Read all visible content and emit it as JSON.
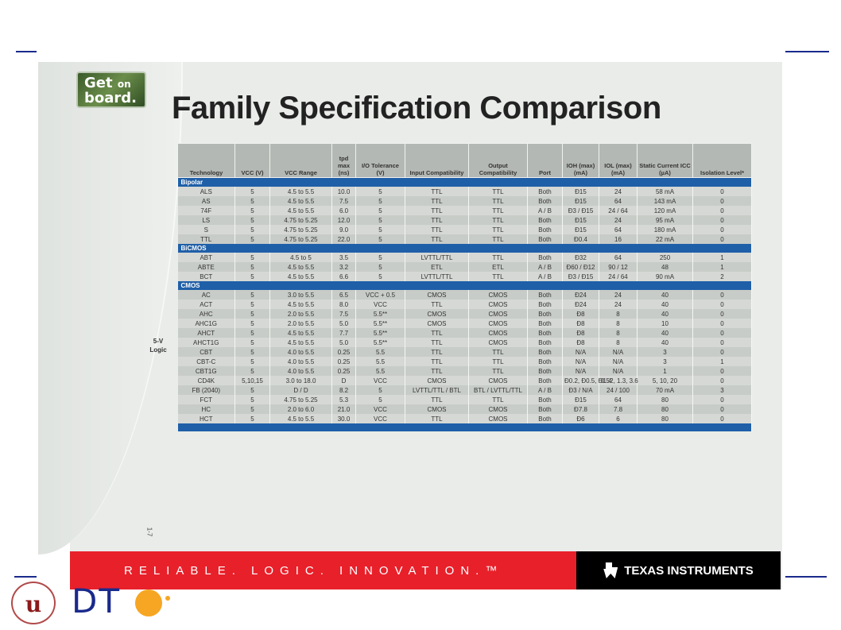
{
  "title": "Family Specification Comparison",
  "logo_badge": {
    "line1": "Get",
    "small": "on",
    "line2": "board."
  },
  "side_label": "5-V Logic",
  "page_number": "1-7",
  "columns": [
    "Technology",
    "VCC (V)",
    "VCC Range",
    "tpd max (ns)",
    "I/O Tolerance (V)",
    "Input Compatibility",
    "Output Compatibility",
    "Port",
    "IOH (max) (mA)",
    "IOL (max) (mA)",
    "Static Current ICC (µA)",
    "Isolation Level*"
  ],
  "sections": [
    {
      "name": "Bipolar",
      "rows": [
        [
          "ALS",
          "5",
          "4.5 to 5.5",
          "10.0",
          "5",
          "TTL",
          "TTL",
          "Both",
          "Ð15",
          "24",
          "58 mA",
          "0"
        ],
        [
          "AS",
          "5",
          "4.5 to 5.5",
          "7.5",
          "5",
          "TTL",
          "TTL",
          "Both",
          "Ð15",
          "64",
          "143 mA",
          "0"
        ],
        [
          "74F",
          "5",
          "4.5 to 5.5",
          "6.0",
          "5",
          "TTL",
          "TTL",
          "A / B",
          "Ð3 / Ð15",
          "24 / 64",
          "120 mA",
          "0"
        ],
        [
          "LS",
          "5",
          "4.75 to 5.25",
          "12.0",
          "5",
          "TTL",
          "TTL",
          "Both",
          "Ð15",
          "24",
          "95 mA",
          "0"
        ],
        [
          "S",
          "5",
          "4.75 to 5.25",
          "9.0",
          "5",
          "TTL",
          "TTL",
          "Both",
          "Ð15",
          "64",
          "180 mA",
          "0"
        ],
        [
          "TTL",
          "5",
          "4.75 to 5.25",
          "22.0",
          "5",
          "TTL",
          "TTL",
          "Both",
          "Ð0.4",
          "16",
          "22 mA",
          "0"
        ]
      ]
    },
    {
      "name": "BiCMOS",
      "rows": [
        [
          "ABT",
          "5",
          "4.5 to 5",
          "3.5",
          "5",
          "LVTTL/TTL",
          "TTL",
          "Both",
          "Ð32",
          "64",
          "250",
          "1"
        ],
        [
          "ABTE",
          "5",
          "4.5 to 5.5",
          "3.2",
          "5",
          "ETL",
          "ETL",
          "A / B",
          "Ð60 / Ð12",
          "90 / 12",
          "48",
          "1"
        ],
        [
          "BCT",
          "5",
          "4.5 to 5.5",
          "6.6",
          "5",
          "LVTTL/TTL",
          "TTL",
          "A / B",
          "Ð3 / Ð15",
          "24 / 64",
          "90 mA",
          "2"
        ]
      ]
    },
    {
      "name": "CMOS",
      "rows": [
        [
          "AC",
          "5",
          "3.0 to 5.5",
          "6.5",
          "VCC + 0.5",
          "CMOS",
          "CMOS",
          "Both",
          "Ð24",
          "24",
          "40",
          "0"
        ],
        [
          "ACT",
          "5",
          "4.5 to 5.5",
          "8.0",
          "VCC",
          "TTL",
          "CMOS",
          "Both",
          "Ð24",
          "24",
          "40",
          "0"
        ],
        [
          "AHC",
          "5",
          "2.0 to 5.5",
          "7.5",
          "5.5**",
          "CMOS",
          "CMOS",
          "Both",
          "Ð8",
          "8",
          "40",
          "0"
        ],
        [
          "AHC1G",
          "5",
          "2.0 to 5.5",
          "5.0",
          "5.5**",
          "CMOS",
          "CMOS",
          "Both",
          "Ð8",
          "8",
          "10",
          "0"
        ],
        [
          "AHCT",
          "5",
          "4.5 to 5.5",
          "7.7",
          "5.5**",
          "TTL",
          "CMOS",
          "Both",
          "Ð8",
          "8",
          "40",
          "0"
        ],
        [
          "AHCT1G",
          "5",
          "4.5 to 5.5",
          "5.0",
          "5.5**",
          "TTL",
          "CMOS",
          "Both",
          "Ð8",
          "8",
          "40",
          "0"
        ],
        [
          "CBT",
          "5",
          "4.0 to 5.5",
          "0.25",
          "5.5",
          "TTL",
          "TTL",
          "Both",
          "N/A",
          "N/A",
          "3",
          "0"
        ],
        [
          "CBT-C",
          "5",
          "4.0 to 5.5",
          "0.25",
          "5.5",
          "TTL",
          "TTL",
          "Both",
          "N/A",
          "N/A",
          "3",
          "1"
        ],
        [
          "CBT1G",
          "5",
          "4.0 to 5.5",
          "0.25",
          "5.5",
          "TTL",
          "TTL",
          "Both",
          "N/A",
          "N/A",
          "1",
          "0"
        ],
        [
          "CD4K",
          "5,10,15",
          "3.0 to 18.0",
          "D",
          "VCC",
          "CMOS",
          "CMOS",
          "Both",
          "Ð0.2, Ð0.5, Ð1.4",
          "0.52, 1.3, 3.6",
          "5, 10, 20",
          "0"
        ],
        [
          "FB (2040)",
          "5",
          "D / D",
          "8.2",
          "5",
          "LVTTL/TTL / BTL",
          "BTL / LVTTL/TTL",
          "A / B",
          "Ð3 / N/A",
          "24 / 100",
          "70 mA",
          "3"
        ],
        [
          "FCT",
          "5",
          "4.75 to 5.25",
          "5.3",
          "5",
          "TTL",
          "TTL",
          "Both",
          "Ð15",
          "64",
          "80",
          "0"
        ],
        [
          "HC",
          "5",
          "2.0 to 6.0",
          "21.0",
          "VCC",
          "CMOS",
          "CMOS",
          "Both",
          "Ð7.8",
          "7.8",
          "80",
          "0"
        ],
        [
          "HCT",
          "5",
          "4.5 to 5.5",
          "30.0",
          "VCC",
          "TTL",
          "CMOS",
          "Both",
          "Ð6",
          "6",
          "80",
          "0"
        ]
      ]
    }
  ],
  "banner": {
    "slogan": "RELIABLE. LOGIC. INNOVATION.™",
    "brand": "TEXAS INSTRUMENTS"
  },
  "bottom_logo": {
    "crest": "u",
    "dte": "DT"
  },
  "colors": {
    "section_blue": "#1f5fa8",
    "banner_red": "#e8202a",
    "deco_navy": "#1a2a8c",
    "orange": "#f6a623"
  }
}
